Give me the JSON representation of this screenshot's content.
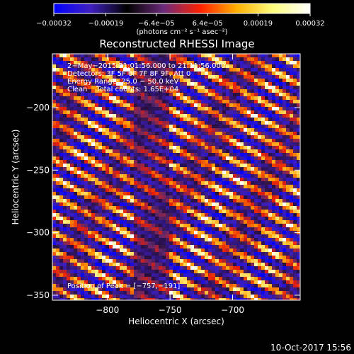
{
  "chart_data": {
    "type": "heatmap",
    "title": "Reconstructed RHESSI Image",
    "xlabel": "Heliocentric X (arcsec)",
    "ylabel": "Heliocentric Y (arcsec)",
    "xlim": [
      -844,
      -646
    ],
    "ylim": [
      -354,
      -157
    ],
    "x_ticks": [
      -800,
      -750,
      -700
    ],
    "x_tick_labels": [
      "−800",
      "−750",
      "−700"
    ],
    "y_ticks": [
      -350,
      -300,
      -250,
      -200
    ],
    "y_tick_labels": [
      "−350",
      "−300",
      "−250",
      "−200"
    ],
    "colorbar": {
      "min": -0.00032,
      "max": 0.00032,
      "tick_values": [
        -0.00032,
        -0.00019,
        -6.4e-05,
        6.4e-05,
        0.00019,
        0.00032
      ],
      "tick_labels": [
        "−0.00032",
        "−0.00019",
        "−6.4e−05",
        "6.4e−05",
        "0.00019",
        "0.00032"
      ],
      "units": "(photons cm⁻² s⁻¹ asec⁻²)",
      "colors": [
        "#0000ff",
        "#4020c0",
        "#000000",
        "#6a2a7a",
        "#ff2000",
        "#ffb000",
        "#ffff80",
        "#ffffff"
      ]
    },
    "annotations": [
      "2−May−2015 21:01:56.000 to 21:11:56.000",
      "Detectors: 3F 5F 6F 7F 8F 9F, Att 0",
      "Energy Range: 25.0 − 50.0 keV",
      "Clean    Total counts: 1.65E+04"
    ],
    "peak_label": "Position of Peak = [−757,−191]",
    "peak": {
      "x": -757,
      "y": -191
    },
    "stripe_pattern": {
      "period_arcsec": 13,
      "slope_deg": -27,
      "background_level": 0.2
    }
  },
  "footer": {
    "timestamp": "10-Oct-2017 15:56"
  }
}
